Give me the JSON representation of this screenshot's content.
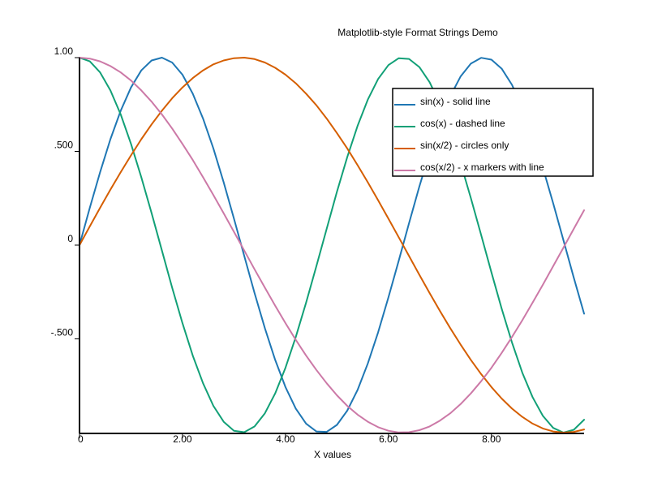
{
  "chart_data": {
    "type": "line",
    "title": "Matplotlib-style Format Strings Demo",
    "xlabel": "X values",
    "ylabel": "",
    "xlim": [
      0,
      9.8
    ],
    "ylim": [
      -1,
      1
    ],
    "x_ticks": [
      {
        "value": 0,
        "label": "0"
      },
      {
        "value": 2,
        "label": "2.00"
      },
      {
        "value": 4,
        "label": "4.00"
      },
      {
        "value": 6,
        "label": "6.00"
      },
      {
        "value": 8,
        "label": "8.00"
      }
    ],
    "y_ticks": [
      {
        "value": 1,
        "label": "1.00"
      },
      {
        "value": 0.5,
        "label": ".500"
      },
      {
        "value": 0,
        "label": "0"
      },
      {
        "value": -0.5,
        "label": "-.500"
      }
    ],
    "grid": false,
    "legend_position": "top-right",
    "x": [
      0.0,
      0.2,
      0.4,
      0.6,
      0.8,
      1.0,
      1.2,
      1.4,
      1.6,
      1.8,
      2.0,
      2.2,
      2.4,
      2.6,
      2.8,
      3.0,
      3.2,
      3.4,
      3.6,
      3.8,
      4.0,
      4.2,
      4.4,
      4.6,
      4.8,
      5.0,
      5.2,
      5.4,
      5.6,
      5.8,
      6.0,
      6.2,
      6.4,
      6.6,
      6.8,
      7.0,
      7.2,
      7.4,
      7.6,
      7.8,
      8.0,
      8.2,
      8.4,
      8.6,
      8.8,
      9.0,
      9.2,
      9.4,
      9.6,
      9.8
    ],
    "series": [
      {
        "name": "sin(x) - solid line",
        "color": "#1f77b4",
        "values": [
          0.0,
          0.199,
          0.389,
          0.565,
          0.717,
          0.841,
          0.932,
          0.985,
          1.0,
          0.974,
          0.909,
          0.808,
          0.675,
          0.516,
          0.335,
          0.141,
          -0.058,
          -0.256,
          -0.443,
          -0.612,
          -0.757,
          -0.872,
          -0.952,
          -0.994,
          -0.996,
          -0.959,
          -0.883,
          -0.773,
          -0.631,
          -0.465,
          -0.279,
          -0.083,
          0.117,
          0.312,
          0.494,
          0.657,
          0.794,
          0.899,
          0.968,
          0.999,
          0.989,
          0.941,
          0.855,
          0.734,
          0.585,
          0.412,
          0.223,
          0.025,
          -0.174,
          -0.366
        ]
      },
      {
        "name": "cos(x) - dashed line",
        "color": "#12a077",
        "values": [
          1.0,
          0.98,
          0.921,
          0.825,
          0.697,
          0.54,
          0.362,
          0.17,
          -0.029,
          -0.227,
          -0.416,
          -0.589,
          -0.737,
          -0.857,
          -0.942,
          -0.99,
          -0.998,
          -0.967,
          -0.897,
          -0.791,
          -0.654,
          -0.49,
          -0.307,
          -0.112,
          0.087,
          0.284,
          0.469,
          0.635,
          0.776,
          0.886,
          0.96,
          0.997,
          0.993,
          0.95,
          0.869,
          0.754,
          0.608,
          0.439,
          0.251,
          0.054,
          -0.146,
          -0.339,
          -0.519,
          -0.68,
          -0.811,
          -0.911,
          -0.975,
          -1.0,
          -0.985,
          -0.931
        ]
      },
      {
        "name": "sin(x/2) - circles only",
        "color": "#d55e00",
        "values": [
          0.0,
          0.1,
          0.199,
          0.296,
          0.389,
          0.479,
          0.565,
          0.644,
          0.717,
          0.783,
          0.841,
          0.891,
          0.932,
          0.964,
          0.985,
          0.997,
          1.0,
          0.992,
          0.974,
          0.946,
          0.909,
          0.863,
          0.808,
          0.746,
          0.675,
          0.598,
          0.516,
          0.427,
          0.335,
          0.239,
          0.141,
          0.042,
          -0.058,
          -0.158,
          -0.256,
          -0.351,
          -0.443,
          -0.53,
          -0.612,
          -0.688,
          -0.757,
          -0.818,
          -0.872,
          -0.916,
          -0.952,
          -0.978,
          -0.994,
          -1.0,
          -0.996,
          -0.983
        ]
      },
      {
        "name": "cos(x/2) - x markers with line",
        "color": "#cc79a7",
        "values": [
          1.0,
          0.995,
          0.98,
          0.955,
          0.921,
          0.878,
          0.825,
          0.765,
          0.697,
          0.622,
          0.54,
          0.454,
          0.362,
          0.267,
          0.17,
          0.071,
          -0.029,
          -0.129,
          -0.227,
          -0.323,
          -0.416,
          -0.505,
          -0.589,
          -0.666,
          -0.737,
          -0.801,
          -0.857,
          -0.904,
          -0.942,
          -0.971,
          -0.99,
          -0.999,
          -0.998,
          -0.987,
          -0.967,
          -0.936,
          -0.897,
          -0.848,
          -0.791,
          -0.726,
          -0.654,
          -0.575,
          -0.49,
          -0.401,
          -0.307,
          -0.211,
          -0.112,
          -0.013,
          0.087,
          0.186
        ]
      }
    ]
  }
}
